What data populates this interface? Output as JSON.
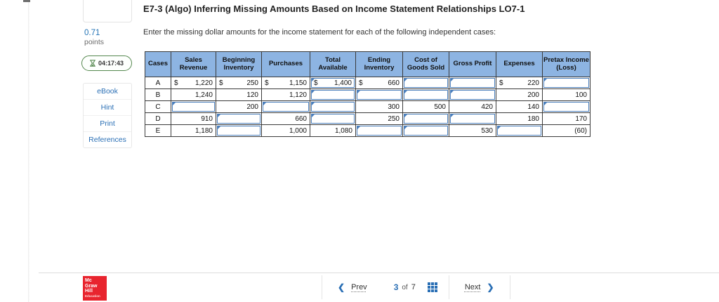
{
  "question": {
    "title": "E7-3 (Algo) Inferring Missing Amounts Based on Income Statement Relationships LO7-1",
    "instruction": "Enter the missing dollar amounts for the income statement for each of the following independent cases:",
    "points_value": "0.71",
    "points_label": "points",
    "timer": "04:17:43"
  },
  "sidebar_links": [
    "eBook",
    "Hint",
    "Print",
    "References"
  ],
  "table": {
    "columns": [
      "Cases",
      "Sales Revenue",
      "Beginning Inventory",
      "Purchases",
      "Total Available",
      "Ending Inventory",
      "Cost of Goods Sold",
      "Gross Profit",
      "Expenses",
      "Pretax Income (Loss)"
    ],
    "rows": [
      {
        "case": "A",
        "cells": [
          {
            "type": "static",
            "dollar": "$",
            "value": "1,220"
          },
          {
            "type": "static",
            "dollar": "$",
            "value": "250"
          },
          {
            "type": "static",
            "dollar": "$",
            "value": "1,150"
          },
          {
            "type": "input",
            "dollar": "$",
            "value": "1,400"
          },
          {
            "type": "static",
            "dollar": "$",
            "value": "660"
          },
          {
            "type": "input",
            "dollar": "",
            "value": ""
          },
          {
            "type": "input",
            "dollar": "",
            "value": ""
          },
          {
            "type": "static",
            "dollar": "$",
            "value": "220"
          },
          {
            "type": "input",
            "dollar": "",
            "value": ""
          }
        ]
      },
      {
        "case": "B",
        "cells": [
          {
            "type": "static",
            "dollar": "",
            "value": "1,240"
          },
          {
            "type": "static",
            "dollar": "",
            "value": "120"
          },
          {
            "type": "static",
            "dollar": "",
            "value": "1,120"
          },
          {
            "type": "input",
            "dollar": "",
            "value": ""
          },
          {
            "type": "input",
            "dollar": "",
            "value": ""
          },
          {
            "type": "input",
            "dollar": "",
            "value": ""
          },
          {
            "type": "input",
            "dollar": "",
            "value": ""
          },
          {
            "type": "static",
            "dollar": "",
            "value": "200"
          },
          {
            "type": "static",
            "dollar": "",
            "value": "100"
          }
        ]
      },
      {
        "case": "C",
        "cells": [
          {
            "type": "input",
            "dollar": "",
            "value": ""
          },
          {
            "type": "static",
            "dollar": "",
            "value": "200"
          },
          {
            "type": "input",
            "dollar": "",
            "value": ""
          },
          {
            "type": "input",
            "dollar": "",
            "value": ""
          },
          {
            "type": "static",
            "dollar": "",
            "value": "300"
          },
          {
            "type": "static",
            "dollar": "",
            "value": "500"
          },
          {
            "type": "static",
            "dollar": "",
            "value": "420"
          },
          {
            "type": "static",
            "dollar": "",
            "value": "140"
          },
          {
            "type": "input",
            "dollar": "",
            "value": ""
          }
        ]
      },
      {
        "case": "D",
        "cells": [
          {
            "type": "static",
            "dollar": "",
            "value": "910"
          },
          {
            "type": "input",
            "dollar": "",
            "value": ""
          },
          {
            "type": "static",
            "dollar": "",
            "value": "660"
          },
          {
            "type": "input",
            "dollar": "",
            "value": ""
          },
          {
            "type": "static",
            "dollar": "",
            "value": "250"
          },
          {
            "type": "input",
            "dollar": "",
            "value": ""
          },
          {
            "type": "input",
            "dollar": "",
            "value": ""
          },
          {
            "type": "static",
            "dollar": "",
            "value": "180"
          },
          {
            "type": "static",
            "dollar": "",
            "value": "170"
          }
        ]
      },
      {
        "case": "E",
        "cells": [
          {
            "type": "static",
            "dollar": "",
            "value": "1,180"
          },
          {
            "type": "input",
            "dollar": "",
            "value": ""
          },
          {
            "type": "static",
            "dollar": "",
            "value": "1,000"
          },
          {
            "type": "static",
            "dollar": "",
            "value": "1,080"
          },
          {
            "type": "input",
            "dollar": "",
            "value": ""
          },
          {
            "type": "input",
            "dollar": "",
            "value": ""
          },
          {
            "type": "static",
            "dollar": "",
            "value": "530"
          },
          {
            "type": "input",
            "dollar": "",
            "value": ""
          },
          {
            "type": "static",
            "dollar": "",
            "value": "(60)"
          }
        ]
      }
    ]
  },
  "footer": {
    "prev_label": "Prev",
    "page_current": "3",
    "of_label": "of",
    "page_total": "7",
    "next_label": "Next",
    "prev_chevron": "❮",
    "next_chevron": "❯",
    "logo_lines": [
      "Mc",
      "Graw",
      "Hill"
    ],
    "logo_sub": "Education"
  },
  "colors": {
    "table_header_bg": "#8db4e2",
    "input_border": "#4a7ebb",
    "link_blue": "#2a6fb5",
    "timer_green": "#55884f",
    "logo_red": "#e8242e"
  }
}
